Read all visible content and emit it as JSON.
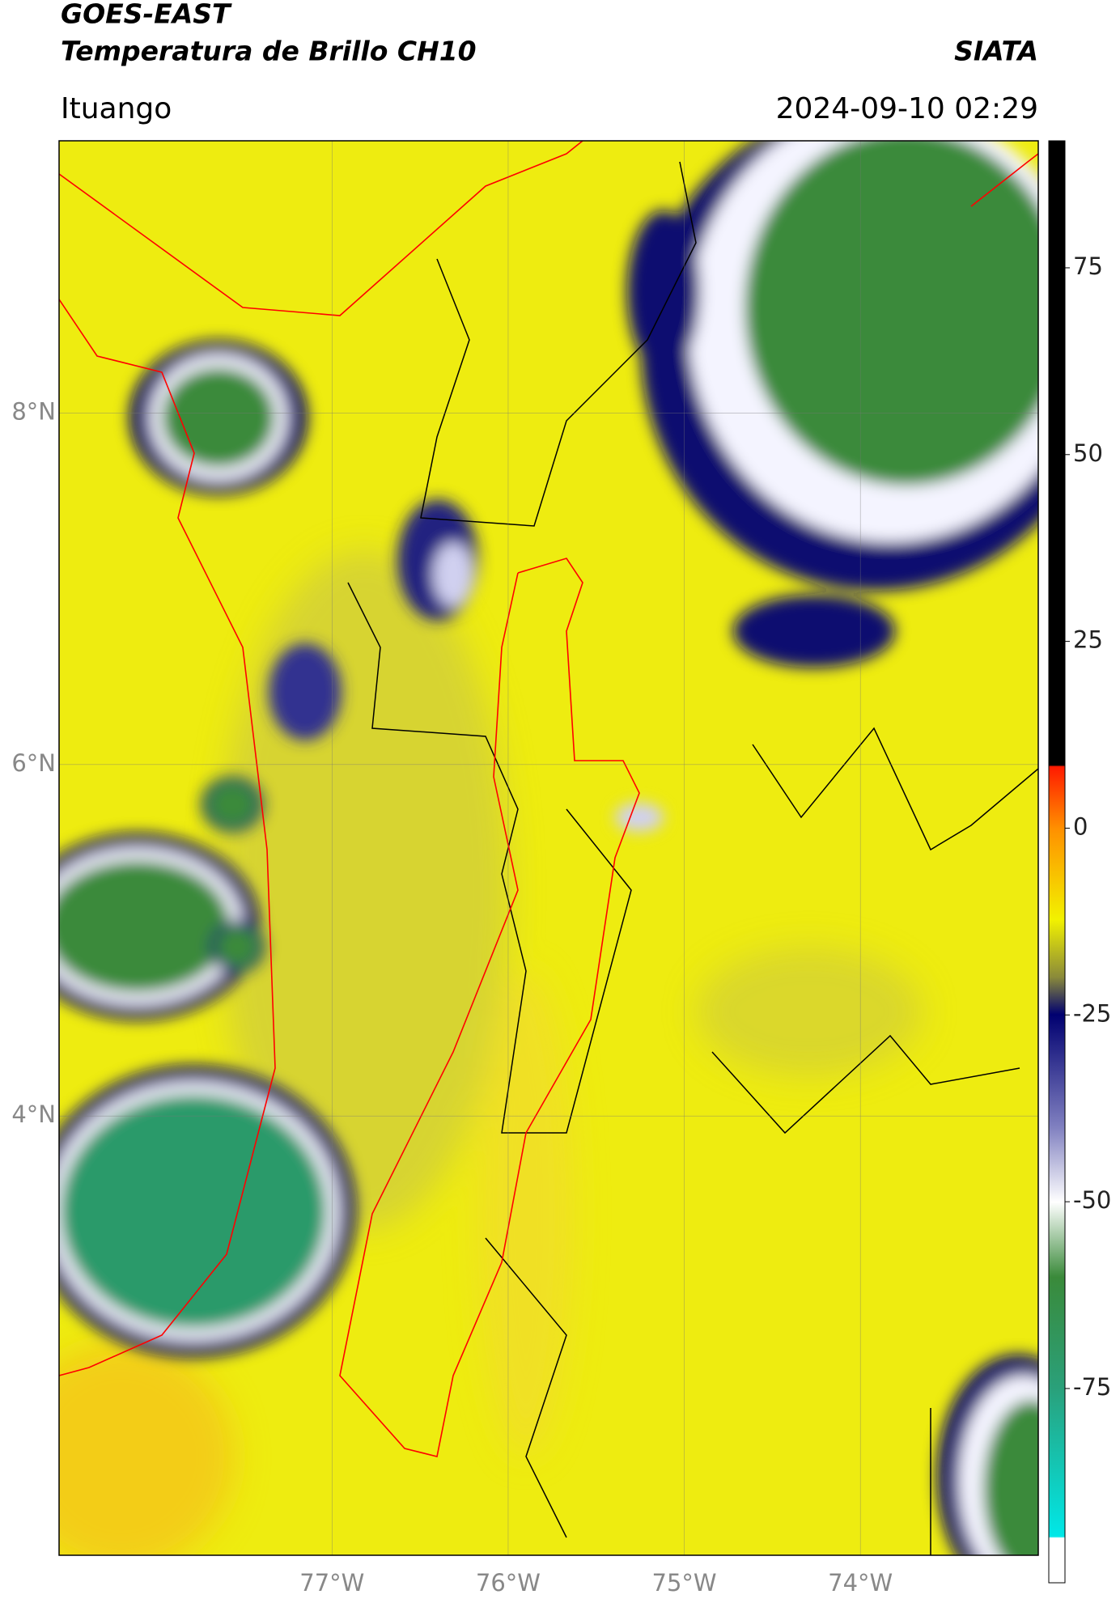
{
  "header": {
    "title": "GOES-EAST",
    "subtitle": "Temperatura de Brillo CH10",
    "org": "SIATA",
    "location": "Ituango",
    "datetime": "2024-09-10 02:29"
  },
  "map": {
    "xlim": [
      -78.55,
      -72.99
    ],
    "ylim": [
      1.5,
      9.55
    ],
    "xticks": [
      {
        "value": -77,
        "label": "77°W"
      },
      {
        "value": -76,
        "label": "76°W"
      },
      {
        "value": -75,
        "label": "75°W"
      },
      {
        "value": -74,
        "label": "74°W"
      }
    ],
    "yticks": [
      {
        "value": 8,
        "label": "8°N"
      },
      {
        "value": 6,
        "label": "6°N"
      },
      {
        "value": 4,
        "label": "4°N"
      }
    ]
  },
  "colorbar": {
    "lim": [
      -101,
      92
    ],
    "ticks": [
      75,
      50,
      25,
      0,
      -25,
      -50,
      -75
    ]
  }
}
